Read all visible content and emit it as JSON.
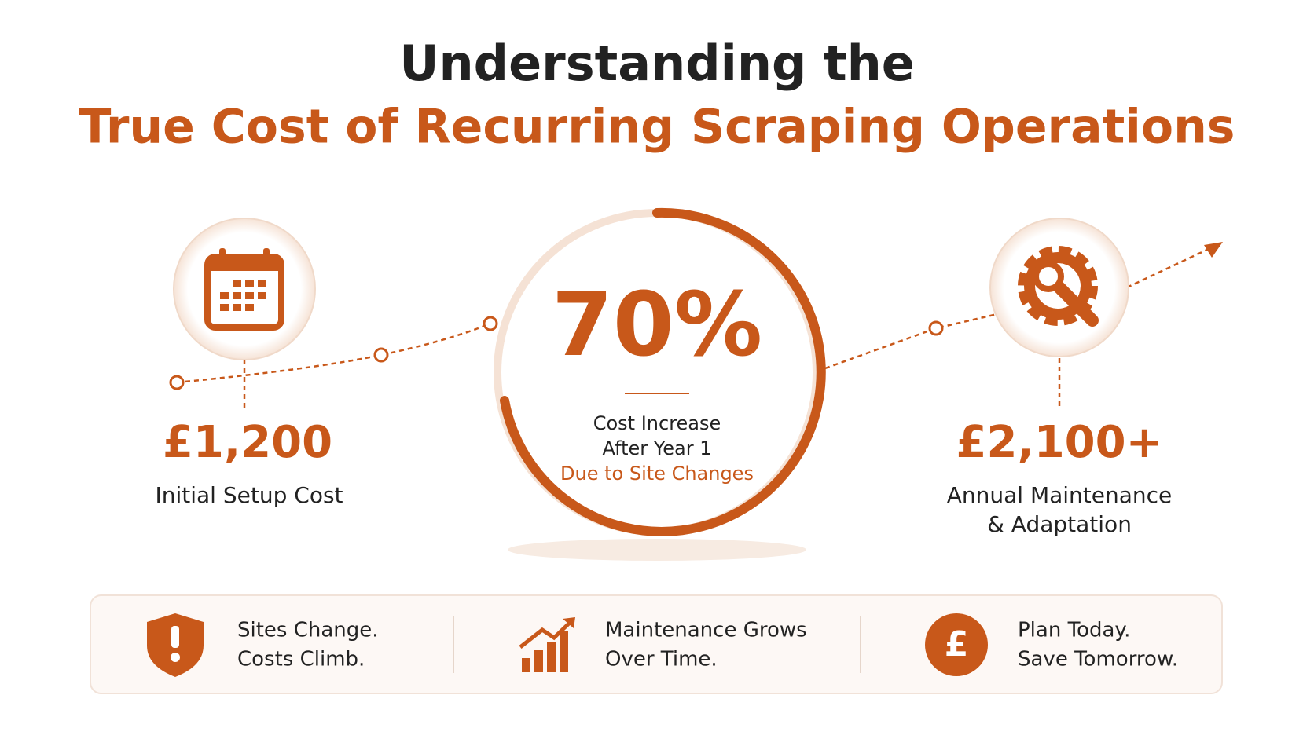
{
  "header": {
    "title_line1": "Understanding the",
    "title_line2": "True Cost of Recurring Scraping Operations"
  },
  "left_stat": {
    "value": "£1,200",
    "label": "Initial Setup Cost"
  },
  "center_stat": {
    "value": "70%",
    "label_lines": [
      "Cost Increase",
      "After Year 1"
    ],
    "highlight": "Due to Site Changes"
  },
  "right_stat": {
    "value": "£2,100+",
    "label_lines": [
      "Annual Maintenance",
      "& Adaptation"
    ]
  },
  "footer": {
    "items": [
      {
        "lines": [
          "Sites Change.",
          "Costs Climb."
        ]
      },
      {
        "lines": [
          "Maintenance Grows",
          "Over Time."
        ]
      },
      {
        "lines": [
          "Plan Today.",
          "Save Tomorrow."
        ]
      }
    ]
  }
}
